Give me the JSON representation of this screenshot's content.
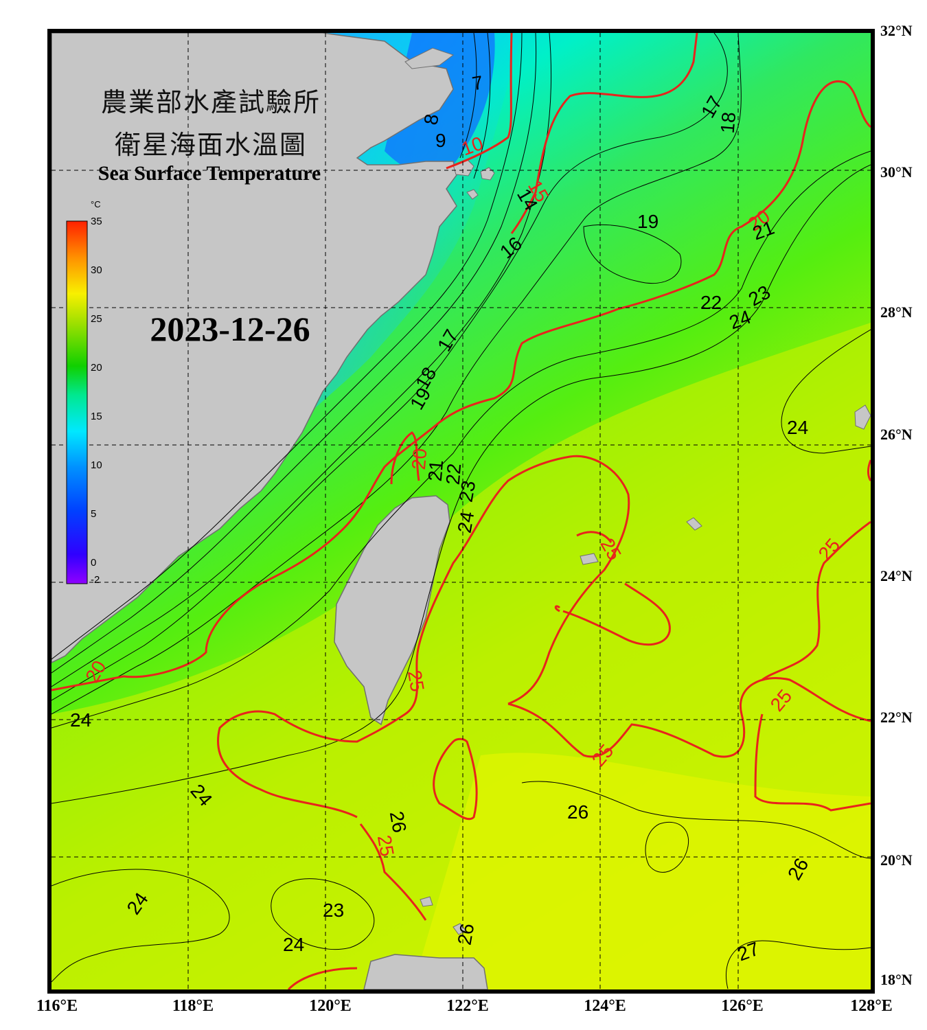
{
  "title_zh_1": "農業部水產試驗所",
  "title_zh_2": "衛星海面水溫圖",
  "title_en": "Sea Surface Temperature",
  "date": "2023-12-26",
  "colorbar": {
    "unit": "°C",
    "ticks": [
      "35",
      "30",
      "25",
      "20",
      "15",
      "10",
      "5",
      "0",
      "-2"
    ],
    "range": [
      -2,
      35
    ]
  },
  "latitude_labels": [
    "32°N",
    "30°N",
    "28°N",
    "26°N",
    "24°N",
    "22°N",
    "20°N",
    "18°N"
  ],
  "longitude_labels": [
    "116°E",
    "118°E",
    "120°E",
    "122°E",
    "124°E",
    "126°E",
    "128°E"
  ],
  "contour_labels": {
    "red": [
      "10",
      "15",
      "20",
      "20",
      "20",
      "25",
      "25",
      "25",
      "25",
      "25",
      "25"
    ],
    "black": [
      "7",
      "8",
      "9",
      "14",
      "16",
      "17",
      "17",
      "18",
      "18",
      "19",
      "19",
      "21",
      "21",
      "22",
      "22",
      "23",
      "23",
      "24",
      "24",
      "24",
      "24",
      "24",
      "24",
      "24",
      "26",
      "26",
      "26",
      "26",
      "27",
      "23"
    ]
  },
  "colors": {
    "land": "#c6c6c6",
    "coast": "#707070",
    "red_contour": "#e8231c",
    "black_contour": "#000000",
    "frame": "#000000"
  }
}
